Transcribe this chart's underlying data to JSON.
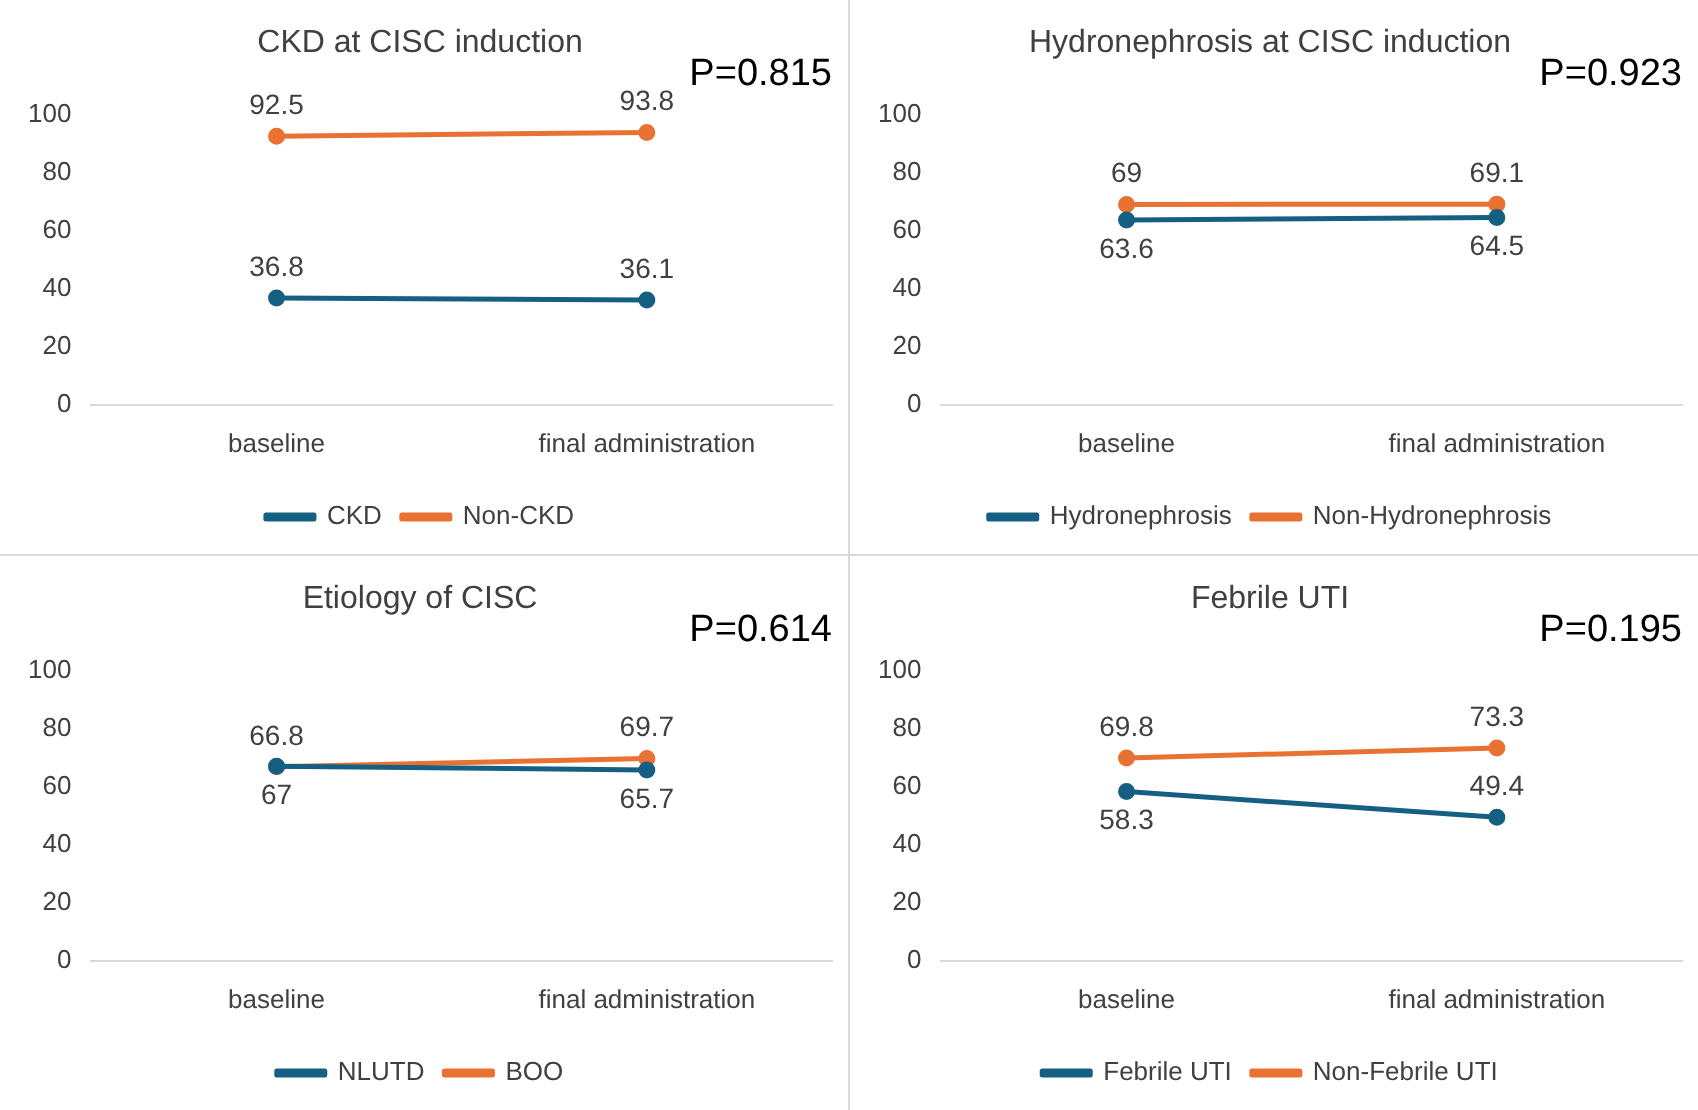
{
  "chart_data": [
    {
      "type": "line",
      "title": "CKD at CISC induction",
      "categories": [
        "baseline",
        "final administration"
      ],
      "series": [
        {
          "name": "CKD",
          "color": "#156082",
          "values": [
            36.8,
            36.1
          ]
        },
        {
          "name": "Non-CKD",
          "color": "#e97132",
          "values": [
            92.5,
            93.8
          ]
        }
      ],
      "ylim": [
        0,
        100
      ],
      "yticks": [
        0,
        20,
        40,
        60,
        80,
        100
      ],
      "grid": false,
      "legend": "bottom",
      "marker": "circle",
      "data_labels": true,
      "annotations": [
        "P=0.815"
      ]
    },
    {
      "type": "line",
      "title": "Hydronephrosis at CISC induction",
      "categories": [
        "baseline",
        "final administration"
      ],
      "series": [
        {
          "name": "Hydronephrosis",
          "color": "#156082",
          "values": [
            63.6,
            64.5
          ]
        },
        {
          "name": "Non-Hydronephrosis",
          "color": "#e97132",
          "values": [
            69,
            69.1
          ]
        }
      ],
      "ylim": [
        0,
        100
      ],
      "yticks": [
        0,
        20,
        40,
        60,
        80,
        100
      ],
      "grid": false,
      "legend": "bottom",
      "marker": "circle",
      "data_labels": true,
      "annotations": [
        "P=0.923"
      ]
    },
    {
      "type": "line",
      "title": "Etiology of CISC",
      "categories": [
        "baseline",
        "final administration"
      ],
      "series": [
        {
          "name": "NLUTD",
          "color": "#156082",
          "values": [
            67,
            65.7
          ]
        },
        {
          "name": "BOO",
          "color": "#e97132",
          "values": [
            66.8,
            69.7
          ]
        }
      ],
      "ylim": [
        0,
        100
      ],
      "yticks": [
        0,
        20,
        40,
        60,
        80,
        100
      ],
      "grid": false,
      "legend": "bottom",
      "marker": "circle",
      "data_labels": true,
      "annotations": [
        "P=0.614"
      ]
    },
    {
      "type": "line",
      "title": "Febrile UTI",
      "categories": [
        "baseline",
        "final administration"
      ],
      "series": [
        {
          "name": "Febrile UTI",
          "color": "#156082",
          "values": [
            58.3,
            49.4
          ]
        },
        {
          "name": "Non-Febrile UTI",
          "color": "#e97132",
          "values": [
            69.8,
            73.3
          ]
        }
      ],
      "ylim": [
        0,
        100
      ],
      "yticks": [
        0,
        20,
        40,
        60,
        80,
        100
      ],
      "grid": false,
      "legend": "bottom",
      "marker": "circle",
      "data_labels": true,
      "annotations": [
        "P=0.195"
      ]
    }
  ]
}
